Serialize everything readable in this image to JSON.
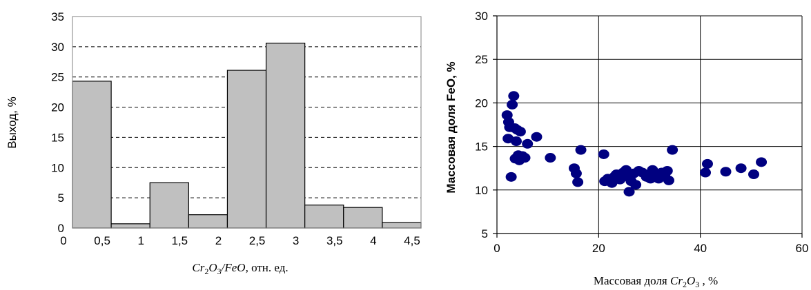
{
  "chart_data": [
    {
      "type": "bar",
      "title": "",
      "ylabel": "Выход, %",
      "xlabel": {
        "formula_parts": [
          "Cr",
          "2",
          "O",
          "3",
          "/FeO"
        ],
        "suffix": ", отн. ед."
      },
      "bins": [
        {
          "x0": 0.0,
          "x1": 0.5,
          "value": 24.3
        },
        {
          "x0": 0.5,
          "x1": 1.0,
          "value": 0.7
        },
        {
          "x0": 1.0,
          "x1": 1.5,
          "value": 7.5
        },
        {
          "x0": 1.5,
          "x1": 2.0,
          "value": 2.2
        },
        {
          "x0": 2.0,
          "x1": 2.5,
          "value": 26.1
        },
        {
          "x0": 2.5,
          "x1": 3.0,
          "value": 30.6
        },
        {
          "x0": 3.0,
          "x1": 3.5,
          "value": 3.8
        },
        {
          "x0": 3.5,
          "x1": 4.0,
          "value": 3.4
        },
        {
          "x0": 4.0,
          "x1": 4.5,
          "value": 0.9
        }
      ],
      "xlim": [
        0,
        4.5
      ],
      "ylim": [
        0,
        35
      ],
      "xticks": [
        "0",
        "0,5",
        "1",
        "1,5",
        "2",
        "2,5",
        "3",
        "3,5",
        "4",
        "4,5"
      ],
      "yticks": [
        "0",
        "5",
        "10",
        "15",
        "20",
        "25",
        "30",
        "35"
      ],
      "grid": "dashed horizontal",
      "bar_color": "#c0c0c0"
    },
    {
      "type": "scatter",
      "title": "",
      "ylabel": "Массовая доля FeO, %",
      "xlabel": {
        "prefix": "Массовая доля ",
        "formula_parts": [
          "Cr",
          "2",
          "O",
          "3"
        ],
        "suffix": " ,  %"
      },
      "xlim": [
        0,
        60
      ],
      "ylim": [
        5,
        30
      ],
      "xticks": [
        "0",
        "20",
        "40",
        "60"
      ],
      "yticks": [
        "5",
        "10",
        "15",
        "20",
        "25",
        "30"
      ],
      "grid": "solid both",
      "marker_color": "#000080",
      "points": [
        [
          2.0,
          18.6
        ],
        [
          2.3,
          17.8
        ],
        [
          2.5,
          17.2
        ],
        [
          2.2,
          15.9
        ],
        [
          3.0,
          19.8
        ],
        [
          3.3,
          20.8
        ],
        [
          2.8,
          11.5
        ],
        [
          3.5,
          17.1
        ],
        [
          4.0,
          16.9
        ],
        [
          4.6,
          16.7
        ],
        [
          3.8,
          15.6
        ],
        [
          4.2,
          14.0
        ],
        [
          3.6,
          13.6
        ],
        [
          4.4,
          13.4
        ],
        [
          5.0,
          13.9
        ],
        [
          5.5,
          13.7
        ],
        [
          6.0,
          15.3
        ],
        [
          7.8,
          16.1
        ],
        [
          10.5,
          13.7
        ],
        [
          15.2,
          12.5
        ],
        [
          15.6,
          11.9
        ],
        [
          15.9,
          10.9
        ],
        [
          16.5,
          14.6
        ],
        [
          21.0,
          14.1
        ],
        [
          21.2,
          11.0
        ],
        [
          21.8,
          11.3
        ],
        [
          22.6,
          10.8
        ],
        [
          23.2,
          11.6
        ],
        [
          23.5,
          11.8
        ],
        [
          24.2,
          11.2
        ],
        [
          24.8,
          12.0
        ],
        [
          25.4,
          12.3
        ],
        [
          25.8,
          11.5
        ],
        [
          26.0,
          9.8
        ],
        [
          26.4,
          11.0
        ],
        [
          26.9,
          11.9
        ],
        [
          27.3,
          10.6
        ],
        [
          27.9,
          12.2
        ],
        [
          28.6,
          12.0
        ],
        [
          29.4,
          11.5
        ],
        [
          30.2,
          11.3
        ],
        [
          30.6,
          12.3
        ],
        [
          31.2,
          11.8
        ],
        [
          31.8,
          11.3
        ],
        [
          32.4,
          12.0
        ],
        [
          33.0,
          11.7
        ],
        [
          33.5,
          12.2
        ],
        [
          33.8,
          11.1
        ],
        [
          34.5,
          14.6
        ],
        [
          41.0,
          12.0
        ],
        [
          41.4,
          13.0
        ],
        [
          45.0,
          12.1
        ],
        [
          48.0,
          12.5
        ],
        [
          50.5,
          11.8
        ],
        [
          52.0,
          13.2
        ]
      ]
    }
  ]
}
